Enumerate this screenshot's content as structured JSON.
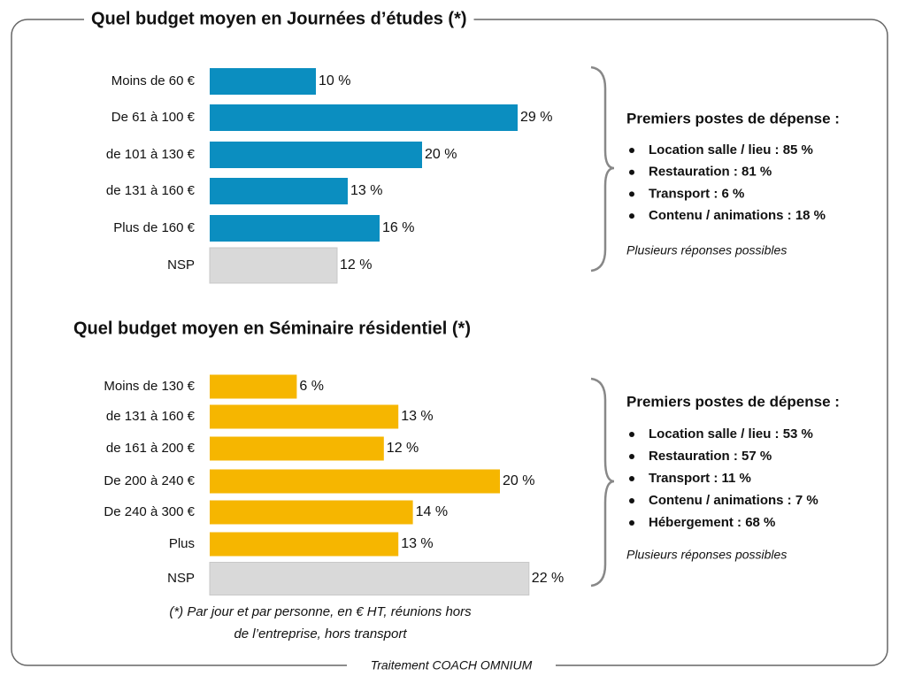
{
  "chart_data": [
    {
      "type": "bar",
      "title": "Quel budget moyen en Journées d’études (*)",
      "categories": [
        "Moins de 60 €",
        "De 61 à 100 €",
        "de 101 à 130 €",
        "de 131 à 160 €",
        "Plus de 160 €",
        "NSP"
      ],
      "values": [
        10,
        29,
        20,
        13,
        16,
        12
      ],
      "value_labels": [
        "10 %",
        "29 %",
        "20 %",
        "13 %",
        "16 %",
        "12 %"
      ],
      "colors": [
        "#0b8ec0",
        "#0b8ec0",
        "#0b8ec0",
        "#0b8ec0",
        "#0b8ec0",
        "#d9d9d9"
      ],
      "side": {
        "heading": "Premiers postes de dépense :",
        "items": [
          "Location salle / lieu : 85 %",
          "Restauration : 81 %",
          "Transport : 6 %",
          "Contenu / animations : 18 %"
        ],
        "note": "Plusieurs réponses possibles"
      }
    },
    {
      "type": "bar",
      "title": "Quel budget moyen en Séminaire résidentiel (*)",
      "categories": [
        "Moins de 130 €",
        "de 131 à 160 €",
        "de 161 à 200 €",
        "De 200 à 240 €",
        "De 240 à 300 €",
        "Plus",
        "NSP"
      ],
      "values": [
        6,
        13,
        12,
        20,
        14,
        13,
        22
      ],
      "value_labels": [
        "6 %",
        "13 %",
        "12 %",
        "20 %",
        "14 %",
        "13 %",
        "22 %"
      ],
      "colors": [
        "#f6b600",
        "#f6b600",
        "#f6b600",
        "#f6b600",
        "#f6b600",
        "#f6b600",
        "#d9d9d9"
      ],
      "side": {
        "heading": "Premiers postes de dépense :",
        "items": [
          "Location salle / lieu : 53 %",
          "Restauration : 57 %",
          "Transport : 11 %",
          "Contenu / animations : 7 %",
          "Hébergement : 68 %"
        ],
        "note": "Plusieurs réponses possibles"
      }
    }
  ],
  "footnote": [
    "(*) Par jour et par personne, en € HT, réunions hors",
    "de l’entreprise, hors transport"
  ],
  "source": "Traitement COACH OMNIUM"
}
